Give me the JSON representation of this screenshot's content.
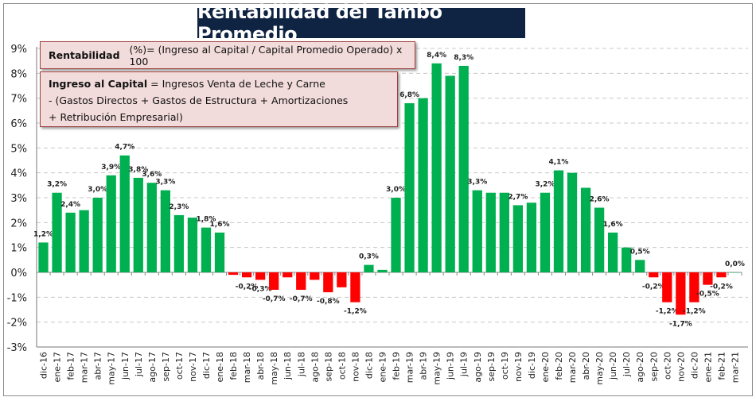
{
  "chart_data": {
    "type": "bar",
    "title": "Rentabilidad del Tambo Promedio",
    "xlabel": "",
    "ylabel": "",
    "ylim": [
      -3,
      9
    ],
    "yticks": [
      "-3%",
      "-2%",
      "-1%",
      "0%",
      "1%",
      "2%",
      "3%",
      "4%",
      "5%",
      "6%",
      "7%",
      "8%",
      "9%"
    ],
    "grid": true,
    "positive_color": "#00b050",
    "negative_color": "#ff0000",
    "categories": [
      "dic-16",
      "ene-17",
      "feb-17",
      "mar-17",
      "abr-17",
      "may-17",
      "jun-17",
      "jul-17",
      "ago-17",
      "sep-17",
      "oct-17",
      "nov-17",
      "dic-17",
      "ene-18",
      "feb-18",
      "mar-18",
      "abr-18",
      "may-18",
      "jun-18",
      "jul-18",
      "ago-18",
      "sep-18",
      "oct-18",
      "nov-18",
      "dic-18",
      "ene-19",
      "feb-19",
      "mar-19",
      "abr-19",
      "may-19",
      "jun-19",
      "jul-19",
      "ago-19",
      "sep-19",
      "oct-19",
      "nov-19",
      "dic-19",
      "ene-20",
      "feb-20",
      "mar-20",
      "abr-20",
      "may-20",
      "jun-20",
      "jul-20",
      "ago-20",
      "sep-20",
      "oct-20",
      "nov-20",
      "dic-20",
      "ene-21",
      "feb-21",
      "mar-21"
    ],
    "values": [
      1.2,
      3.2,
      2.4,
      2.5,
      3.0,
      3.9,
      4.7,
      3.8,
      3.6,
      3.3,
      2.3,
      2.2,
      1.8,
      1.6,
      -0.1,
      -0.2,
      -0.3,
      -0.7,
      -0.2,
      -0.7,
      -0.3,
      -0.8,
      -0.6,
      -1.2,
      0.3,
      0.1,
      3.0,
      6.8,
      7.0,
      8.4,
      7.9,
      8.3,
      3.3,
      3.2,
      3.2,
      2.7,
      2.8,
      3.2,
      4.1,
      4.0,
      3.4,
      2.6,
      1.6,
      1.0,
      0.5,
      -0.2,
      -1.2,
      -1.7,
      -1.2,
      -0.5,
      -0.2,
      0.0
    ],
    "data_labels": [
      "1,2%",
      "3,2%",
      "2,4%",
      null,
      "3,0%",
      "3,9%",
      "4,7%",
      "3,8%",
      "3,6%",
      "3,3%",
      "2,3%",
      null,
      "1,8%",
      "1,6%",
      null,
      "-0,2%",
      "-0,3%",
      "-0,7%",
      null,
      "-0,7%",
      null,
      "-0,8%",
      null,
      "-1,2%",
      "0,3%",
      null,
      "3,0%",
      "6,8%",
      null,
      "8,4%",
      null,
      "8,3%",
      "3,3%",
      null,
      null,
      "2,7%",
      null,
      "3,2%",
      "4,1%",
      null,
      null,
      "2,6%",
      "1,6%",
      null,
      "0,5%",
      "-0,2%",
      "-1,2%",
      "-1,7%",
      "-1,2%",
      "-0,5%",
      "-0,2%",
      "0,0%"
    ]
  },
  "notes": {
    "formula1_term": "Rentabilidad",
    "formula1_rest": "(%)= (Ingreso al Capital / Capital Promedio Operado) x 100",
    "formula2_term": "Ingreso al Capital",
    "formula2_line1": "= Ingresos Venta de Leche  y Carne",
    "formula2_line2": "-  (Gastos Directos + Gastos de Estructura  + Amortizaciones",
    "formula2_line3": "+  Retribución Empresarial)"
  }
}
